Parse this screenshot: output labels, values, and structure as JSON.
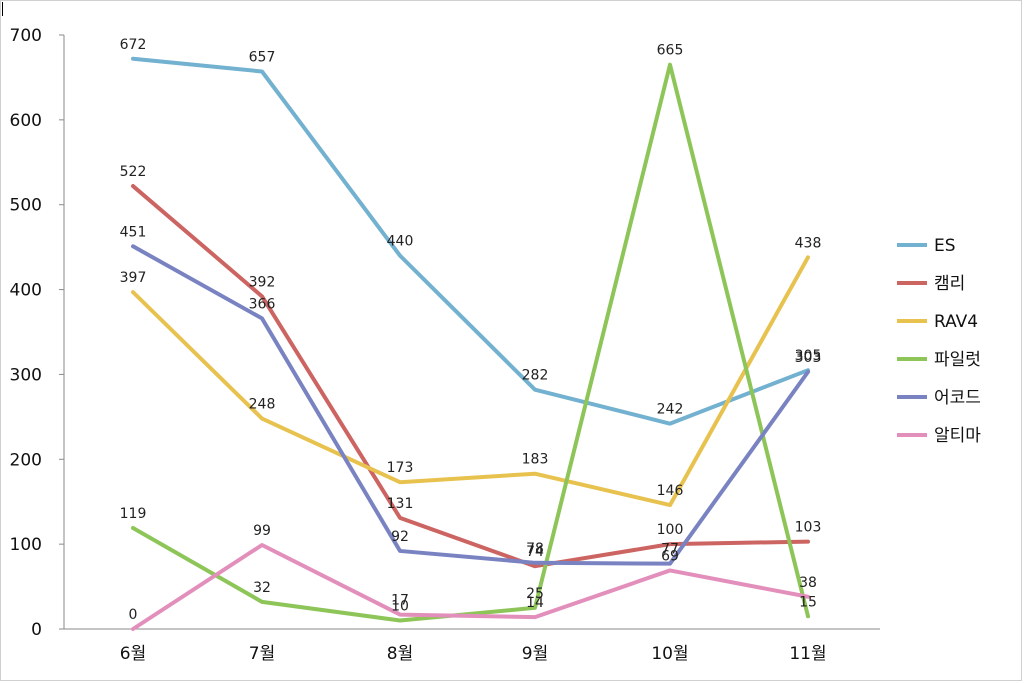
{
  "chart_data": {
    "type": "line",
    "categories": [
      "6월",
      "7월",
      "8월",
      "9월",
      "10월",
      "11월"
    ],
    "ylim": [
      0,
      700
    ],
    "yticks": [
      0,
      100,
      200,
      300,
      400,
      500,
      600,
      700
    ],
    "grid": false,
    "legend_position": "right",
    "series": [
      {
        "name": "ES",
        "color": "#72b1cf",
        "values": [
          672,
          657,
          440,
          282,
          242,
          305
        ]
      },
      {
        "name": "캠리",
        "color": "#cc6461",
        "values": [
          522,
          392,
          131,
          74,
          100,
          103
        ]
      },
      {
        "name": "RAV4",
        "color": "#e8c24f",
        "values": [
          397,
          248,
          173,
          183,
          146,
          438
        ]
      },
      {
        "name": "파일럿",
        "color": "#8dc558",
        "values": [
          119,
          32,
          10,
          25,
          665,
          15
        ]
      },
      {
        "name": "어코드",
        "color": "#7a83c2",
        "values": [
          451,
          366,
          92,
          78,
          77,
          303
        ]
      },
      {
        "name": "알티마",
        "color": "#e38fbb",
        "values": [
          0,
          99,
          17,
          14,
          69,
          38
        ]
      }
    ]
  }
}
